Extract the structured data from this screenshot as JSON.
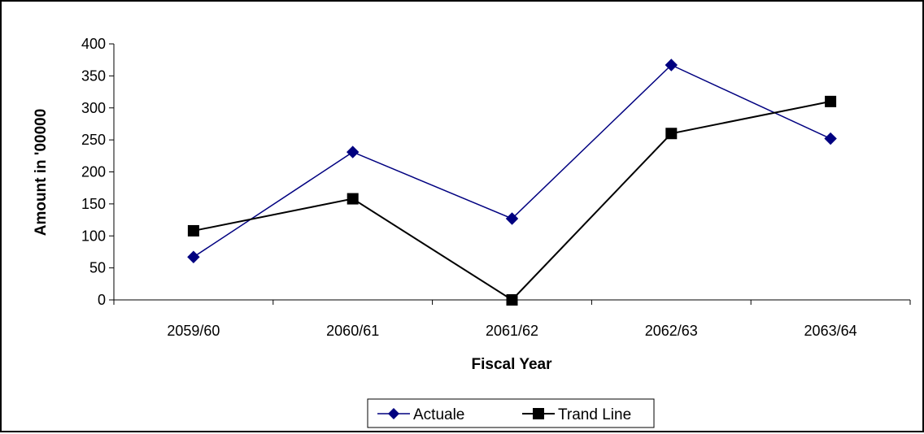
{
  "chart_data": {
    "type": "line",
    "title": "",
    "xlabel": "Fiscal Year",
    "ylabel": "Amount in '00000",
    "categories": [
      "2059/60",
      "2060/61",
      "2061/62",
      "2062/63",
      "2063/64"
    ],
    "ylim": [
      0,
      400
    ],
    "yticks": [
      0,
      50,
      100,
      150,
      200,
      250,
      300,
      350,
      400
    ],
    "grid": false,
    "legend_position": "bottom",
    "series": [
      {
        "name": "Actuale",
        "values": [
          67,
          231,
          127,
          367,
          252
        ],
        "color": "#000080",
        "marker": "diamond"
      },
      {
        "name": "Trand Line",
        "values": [
          108,
          158,
          0,
          260,
          310
        ],
        "color": "#000000",
        "marker": "square"
      }
    ]
  }
}
